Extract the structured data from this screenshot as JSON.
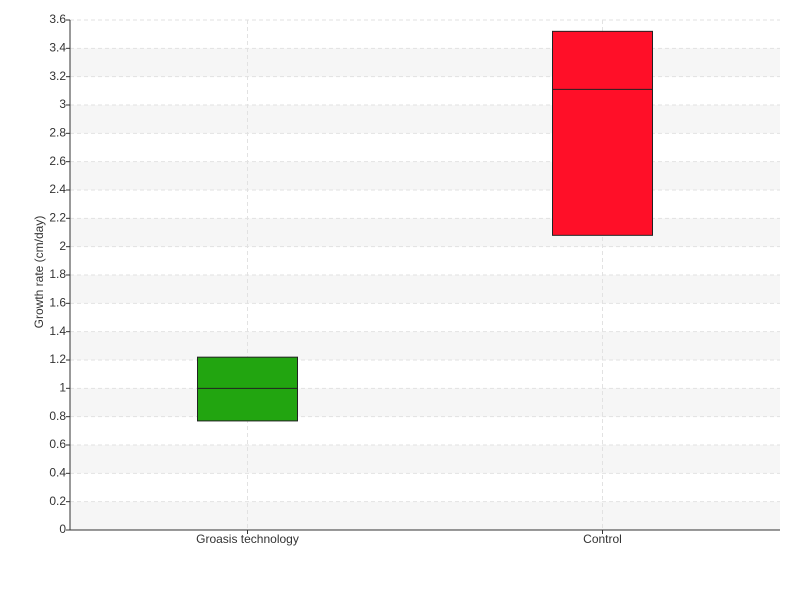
{
  "chart_data": {
    "type": "box",
    "y_label": "Growth rate (cm/day)",
    "categories": [
      "Groasis technology",
      "Control"
    ],
    "boxes": [
      {
        "q1": 0.77,
        "median": 1.0,
        "q3": 1.22,
        "color": "#22a510"
      },
      {
        "q1": 2.08,
        "median": 3.11,
        "q3": 3.52,
        "color": "#ff0f28"
      }
    ],
    "ylim": [
      0,
      3.6
    ],
    "yticks": [
      0,
      0.2,
      0.4,
      0.6,
      0.8,
      1,
      1.2,
      1.4,
      1.6,
      1.8,
      2,
      2.2,
      2.4,
      2.6,
      2.8,
      3,
      3.2,
      3.4,
      3.6
    ],
    "grid": true
  }
}
